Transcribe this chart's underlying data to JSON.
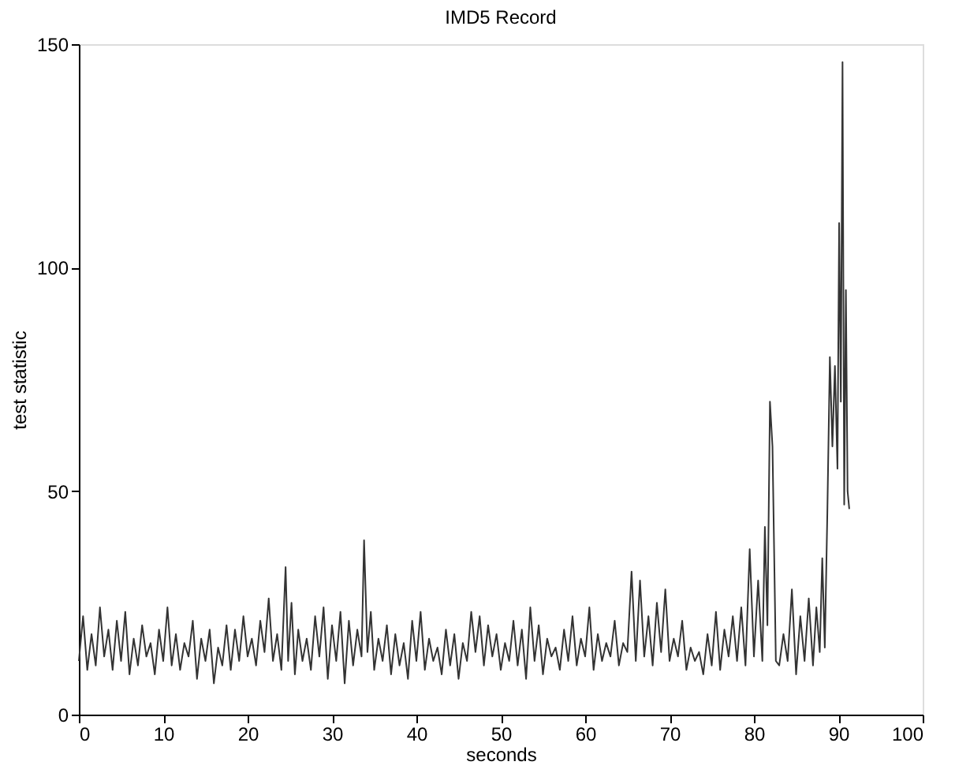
{
  "chart_data": {
    "type": "line",
    "title": "IMD5 Record",
    "xlabel": "seconds",
    "ylabel": "test statistic",
    "xlim": [
      0,
      100
    ],
    "ylim": [
      0,
      150
    ],
    "xticks": [
      0,
      10,
      20,
      30,
      40,
      50,
      60,
      70,
      80,
      90,
      100
    ],
    "yticks": [
      0,
      50,
      100,
      150
    ],
    "grid": false,
    "series": [
      {
        "color": "#333333",
        "x": [
          0,
          0.5,
          1,
          1.5,
          2,
          2.5,
          3,
          3.5,
          4,
          4.5,
          5,
          5.5,
          6,
          6.5,
          7,
          7.5,
          8,
          8.5,
          9,
          9.5,
          10,
          10.5,
          11,
          11.5,
          12,
          12.5,
          13,
          13.5,
          14,
          14.5,
          15,
          15.5,
          16,
          16.5,
          17,
          17.5,
          18,
          18.5,
          19,
          19.5,
          20,
          20.5,
          21,
          21.5,
          22,
          22.5,
          23,
          23.5,
          24,
          24.5,
          24.8,
          25.2,
          25.6,
          26,
          26.5,
          27,
          27.5,
          28,
          28.5,
          29,
          29.5,
          30,
          30.5,
          31,
          31.5,
          32,
          32.5,
          33,
          33.5,
          33.8,
          34.2,
          34.6,
          35,
          35.5,
          36,
          36.5,
          37,
          37.5,
          38,
          38.5,
          39,
          39.5,
          40,
          40.5,
          41,
          41.5,
          42,
          42.5,
          43,
          43.5,
          44,
          44.5,
          45,
          45.5,
          46,
          46.5,
          47,
          47.5,
          48,
          48.5,
          49,
          49.5,
          50,
          50.5,
          51,
          51.5,
          52,
          52.5,
          53,
          53.5,
          54,
          54.5,
          55,
          55.5,
          56,
          56.5,
          57,
          57.5,
          58,
          58.5,
          59,
          59.5,
          60,
          60.5,
          61,
          61.5,
          62,
          62.5,
          63,
          63.5,
          64,
          64.5,
          65,
          65.5,
          66,
          66.5,
          67,
          67.5,
          68,
          68.5,
          69,
          69.5,
          70,
          70.5,
          71,
          71.5,
          72,
          72.5,
          73,
          73.5,
          74,
          74.5,
          75,
          75.5,
          76,
          76.5,
          77,
          77.5,
          78,
          78.5,
          79,
          79.5,
          80,
          80.5,
          81,
          81.3,
          81.6,
          81.9,
          82.2,
          82.6,
          83,
          83.5,
          84,
          84.5,
          85,
          85.5,
          86,
          86.5,
          87,
          87.4,
          87.8,
          88.1,
          88.4,
          88.7,
          89,
          89.3,
          89.6,
          89.9,
          90.1,
          90.3,
          90.5,
          90.7,
          90.9,
          91.1,
          91.3
        ],
        "values": [
          12,
          22,
          10,
          18,
          11,
          24,
          13,
          19,
          10,
          21,
          12,
          23,
          9,
          17,
          11,
          20,
          13,
          16,
          9,
          19,
          12,
          24,
          11,
          18,
          10,
          16,
          13,
          21,
          8,
          17,
          12,
          19,
          7,
          15,
          11,
          20,
          10,
          19,
          12,
          22,
          13,
          17,
          11,
          21,
          14,
          26,
          12,
          18,
          10,
          33,
          12,
          25,
          9,
          19,
          12,
          17,
          10,
          22,
          13,
          24,
          8,
          20,
          12,
          23,
          7,
          21,
          11,
          19,
          13,
          39,
          14,
          23,
          10,
          17,
          12,
          20,
          9,
          18,
          11,
          16,
          8,
          21,
          12,
          23,
          10,
          17,
          12,
          15,
          9,
          19,
          11,
          18,
          8,
          16,
          12,
          23,
          14,
          22,
          11,
          20,
          13,
          18,
          10,
          16,
          12,
          21,
          11,
          19,
          8,
          24,
          12,
          20,
          9,
          17,
          13,
          15,
          10,
          19,
          12,
          22,
          11,
          17,
          13,
          24,
          10,
          18,
          12,
          16,
          13,
          21,
          11,
          16,
          14,
          32,
          12,
          30,
          13,
          22,
          11,
          25,
          14,
          28,
          12,
          17,
          13,
          21,
          10,
          15,
          12,
          14,
          9,
          18,
          11,
          23,
          10,
          19,
          13,
          22,
          12,
          24,
          11,
          37,
          13,
          30,
          12,
          42,
          20,
          70,
          60,
          12,
          11,
          18,
          12,
          28,
          9,
          22,
          12,
          26,
          11,
          24,
          14,
          35,
          15,
          45,
          80,
          60,
          78,
          55,
          110,
          70,
          146,
          47,
          95,
          50,
          46
        ]
      }
    ]
  }
}
